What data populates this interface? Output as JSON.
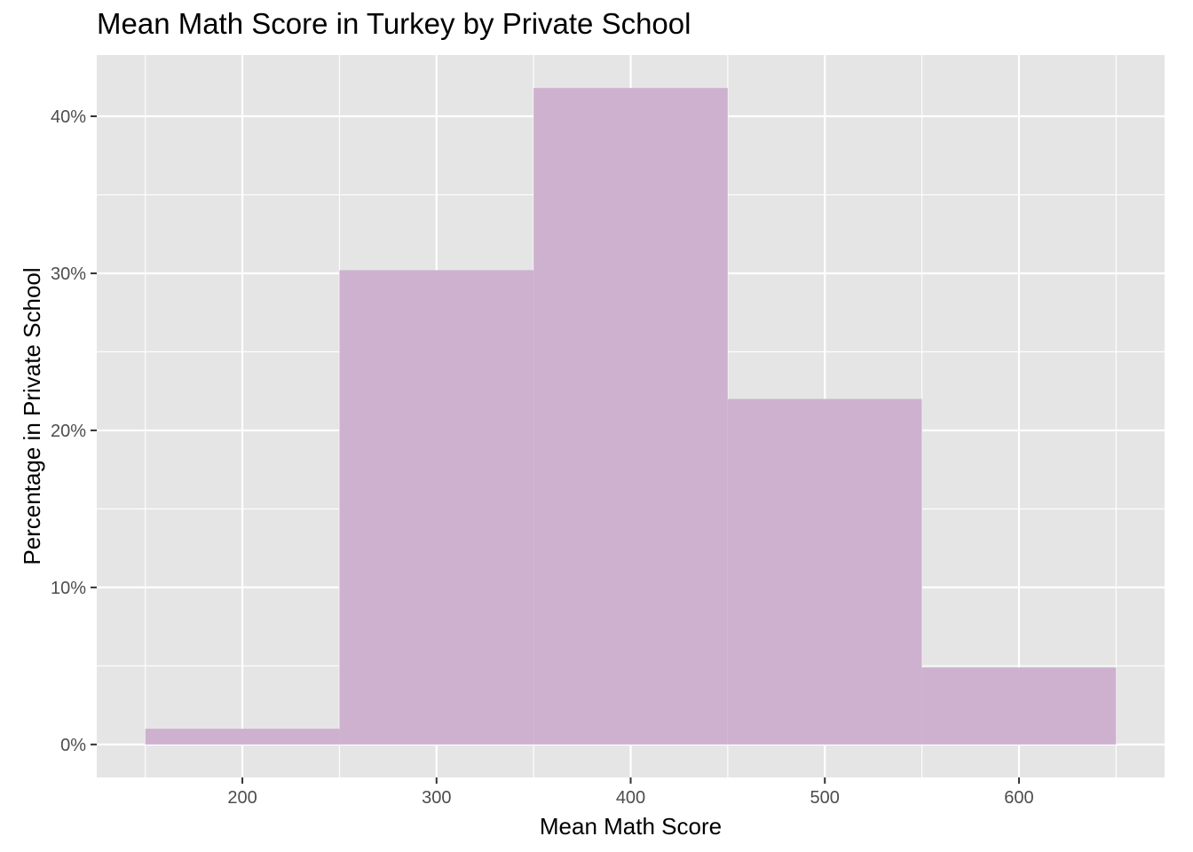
{
  "chart_data": {
    "type": "bar",
    "title": "Mean Math Score in Turkey by Private School",
    "xlabel": "Mean Math Score",
    "ylabel": "Percentage in Private School",
    "bins": [
      {
        "x_start": 150,
        "x_end": 250,
        "value": 1.0
      },
      {
        "x_start": 250,
        "x_end": 350,
        "value": 30.2
      },
      {
        "x_start": 350,
        "x_end": 450,
        "value": 41.8
      },
      {
        "x_start": 450,
        "x_end": 550,
        "value": 22.0
      },
      {
        "x_start": 550,
        "x_end": 650,
        "value": 4.9
      }
    ],
    "xlim": [
      125,
      675
    ],
    "ylim": [
      -2.1,
      43.9
    ],
    "x_ticks": [
      200,
      300,
      400,
      500,
      600
    ],
    "x_tick_labels": [
      "200",
      "300",
      "400",
      "500",
      "600"
    ],
    "y_ticks": [
      0,
      10,
      20,
      30,
      40
    ],
    "y_tick_labels": [
      "0%",
      "10%",
      "20%",
      "30%",
      "40%"
    ],
    "grid": true,
    "legend": "none",
    "colors": {
      "bar_fill": "#cdb1cf",
      "panel_background": "#e5e5e5",
      "grid": "#ffffff"
    }
  }
}
